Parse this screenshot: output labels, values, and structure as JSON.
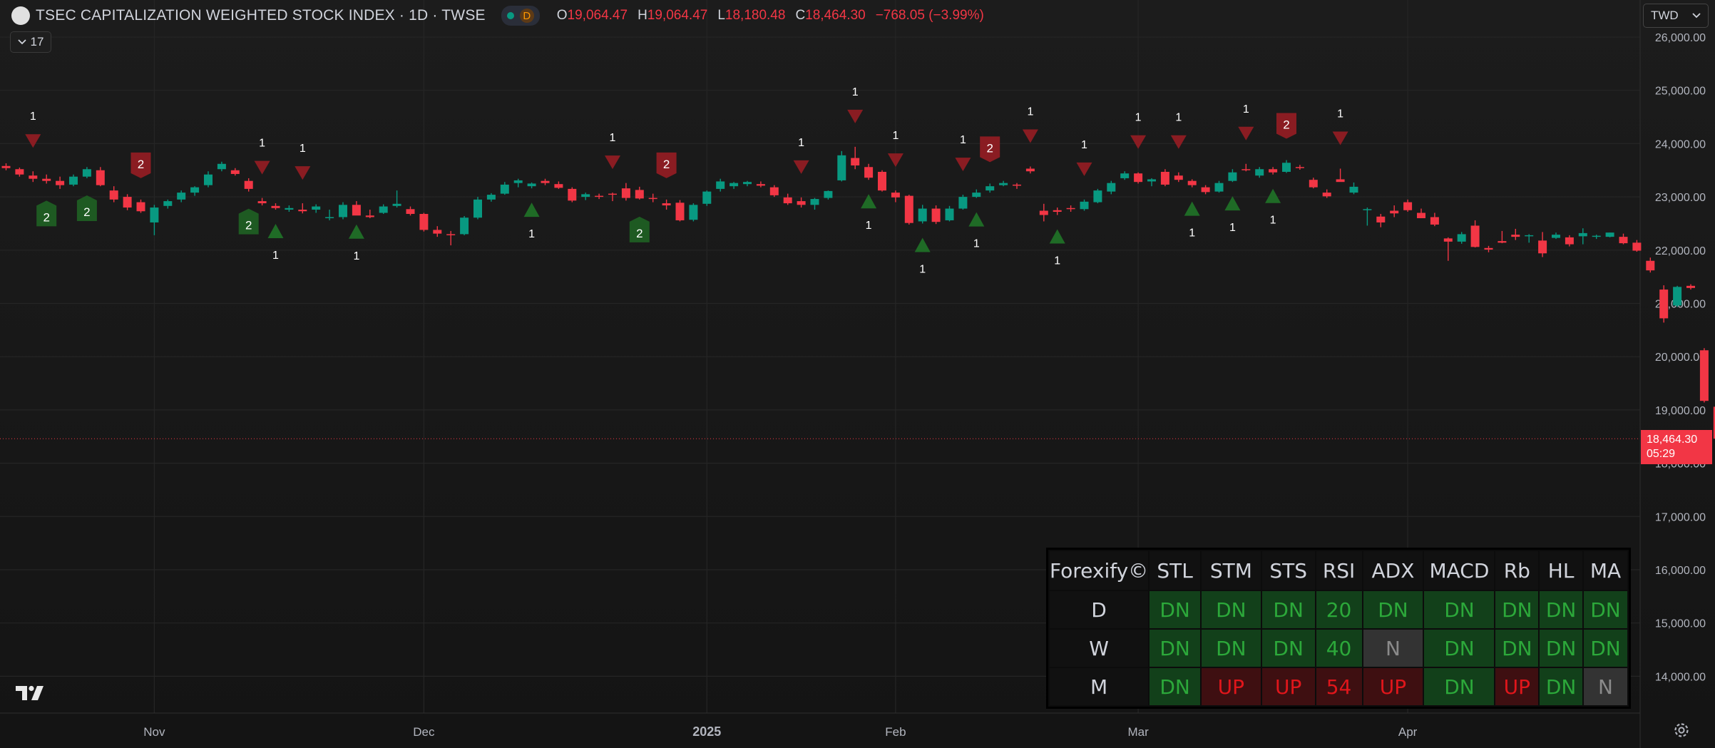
{
  "legend": {
    "title": "TSEC CAPITALIZATION WEIGHTED STOCK INDEX · 1D · TWSE",
    "interval_badge": "D",
    "o_key": "O",
    "o_val": "19,064.47",
    "h_key": "H",
    "h_val": "19,064.47",
    "l_key": "L",
    "l_val": "18,180.48",
    "c_key": "C",
    "c_val": "18,464.30",
    "change": "−768.05 (−3.99%)",
    "indicator_count": "17"
  },
  "currency": "TWD",
  "last_price": {
    "price": "18,464.30",
    "countdown": "05:29"
  },
  "colors": {
    "up": "#089981",
    "down": "#f23645",
    "dash_green": "#2ca83a",
    "dash_red": "#e0161b",
    "background": "#161616"
  },
  "icons": [
    "chevron-down-icon",
    "tradingview-logo-icon",
    "gear-icon"
  ],
  "chart_data": {
    "type": "candlestick",
    "symbol": "TSEC CAPITALIZATION WEIGHTED STOCK INDEX",
    "interval": "1D",
    "y_ticks": [
      "26,000.00",
      "25,000.00",
      "24,000.00",
      "23,000.00",
      "22,000.00",
      "21,000.00",
      "20,000.00",
      "19,000.00",
      "18,000.00",
      "17,000.00",
      "16,000.00",
      "15,000.00",
      "14,000.00"
    ],
    "ylim": [
      13650,
      26300
    ],
    "x_labels": [
      {
        "label": "Nov",
        "i": 11,
        "bold": false
      },
      {
        "label": "Dec",
        "i": 31,
        "bold": false
      },
      {
        "label": "2025",
        "i": 52,
        "bold": true
      },
      {
        "label": "Feb",
        "i": 66,
        "bold": false
      },
      {
        "label": "Mar",
        "i": 84,
        "bold": false
      },
      {
        "label": "Apr",
        "i": 104,
        "bold": false
      }
    ],
    "candles": [
      [
        23580,
        23630,
        23500,
        23540
      ],
      [
        23520,
        23550,
        23380,
        23420
      ],
      [
        23400,
        23480,
        23280,
        23340
      ],
      [
        23340,
        23420,
        23250,
        23300
      ],
      [
        23300,
        23380,
        23150,
        23220
      ],
      [
        23230,
        23420,
        23200,
        23380
      ],
      [
        23380,
        23560,
        23350,
        23520
      ],
      [
        23500,
        23560,
        23200,
        23220
      ],
      [
        23120,
        23200,
        22900,
        22950
      ],
      [
        23000,
        23050,
        22750,
        22800
      ],
      [
        22900,
        22950,
        22700,
        22730
      ],
      [
        22520,
        22850,
        22280,
        22800
      ],
      [
        22830,
        22950,
        22780,
        22920
      ],
      [
        22950,
        23120,
        22900,
        23080
      ],
      [
        23080,
        23200,
        23020,
        23180
      ],
      [
        23220,
        23480,
        23180,
        23420
      ],
      [
        23520,
        23660,
        23480,
        23620
      ],
      [
        23500,
        23540,
        23400,
        23430
      ],
      [
        23300,
        23350,
        23100,
        23150
      ],
      [
        22920,
        22980,
        22840,
        22880
      ],
      [
        22830,
        22880,
        22760,
        22790
      ],
      [
        22760,
        22840,
        22720,
        22790
      ],
      [
        22760,
        22880,
        22690,
        22730
      ],
      [
        22760,
        22860,
        22700,
        22820
      ],
      [
        22600,
        22760,
        22560,
        22620
      ],
      [
        22620,
        22900,
        22580,
        22850
      ],
      [
        22850,
        22920,
        22750,
        22650
      ],
      [
        22650,
        22760,
        22600,
        22620
      ],
      [
        22700,
        22860,
        22680,
        22820
      ],
      [
        22830,
        23120,
        22800,
        22870
      ],
      [
        22770,
        22820,
        22650,
        22680
      ],
      [
        22680,
        22700,
        22350,
        22380
      ],
      [
        22380,
        22450,
        22250,
        22310
      ],
      [
        22300,
        22360,
        22090,
        22280
      ],
      [
        22300,
        22640,
        22280,
        22610
      ],
      [
        22610,
        23000,
        22580,
        22950
      ],
      [
        22950,
        23070,
        22910,
        23040
      ],
      [
        23060,
        23280,
        23040,
        23230
      ],
      [
        23260,
        23340,
        23180,
        23310
      ],
      [
        23200,
        23270,
        23160,
        23250
      ],
      [
        23300,
        23340,
        23220,
        23260
      ],
      [
        23240,
        23290,
        23150,
        23170
      ],
      [
        23150,
        23180,
        22900,
        22930
      ],
      [
        23000,
        23080,
        22940,
        23050
      ],
      [
        23020,
        23060,
        22960,
        23000
      ],
      [
        23060,
        23080,
        22920,
        23040
      ],
      [
        23160,
        23260,
        22930,
        22980
      ],
      [
        23130,
        23190,
        22950,
        22970
      ],
      [
        22980,
        23060,
        22900,
        22960
      ],
      [
        22880,
        22950,
        22760,
        22840
      ],
      [
        22890,
        22940,
        22540,
        22560
      ],
      [
        22570,
        22880,
        22540,
        22850
      ],
      [
        22870,
        23120,
        22830,
        23100
      ],
      [
        23150,
        23340,
        23100,
        23290
      ],
      [
        23200,
        23280,
        23150,
        23260
      ],
      [
        23240,
        23300,
        23200,
        23280
      ],
      [
        23240,
        23290,
        23180,
        23210
      ],
      [
        23180,
        23220,
        23000,
        23030
      ],
      [
        22990,
        23060,
        22850,
        22880
      ],
      [
        22920,
        22990,
        22800,
        22850
      ],
      [
        22850,
        22980,
        22760,
        22960
      ],
      [
        22980,
        23120,
        22950,
        23110
      ],
      [
        23310,
        23860,
        23290,
        23780
      ],
      [
        23730,
        23940,
        23520,
        23590
      ],
      [
        23560,
        23620,
        23320,
        23360
      ],
      [
        23470,
        23500,
        23100,
        23120
      ],
      [
        23080,
        23120,
        22900,
        22990
      ],
      [
        23020,
        23040,
        22480,
        22510
      ],
      [
        22540,
        22850,
        22500,
        22780
      ],
      [
        22780,
        22840,
        22490,
        22530
      ],
      [
        22560,
        22830,
        22540,
        22780
      ],
      [
        22780,
        23040,
        22760,
        23000
      ],
      [
        23000,
        23140,
        22980,
        23080
      ],
      [
        23120,
        23250,
        23080,
        23200
      ],
      [
        23220,
        23300,
        23200,
        23260
      ],
      [
        23230,
        23260,
        23150,
        23220
      ],
      [
        23530,
        23570,
        23440,
        23480
      ],
      [
        22740,
        22870,
        22540,
        22660
      ],
      [
        22750,
        22800,
        22660,
        22720
      ],
      [
        22790,
        22840,
        22720,
        22780
      ],
      [
        22770,
        22950,
        22740,
        22910
      ],
      [
        22900,
        23150,
        22880,
        23120
      ],
      [
        23100,
        23300,
        23050,
        23260
      ],
      [
        23350,
        23480,
        23320,
        23440
      ],
      [
        23440,
        23460,
        23250,
        23280
      ],
      [
        23290,
        23350,
        23200,
        23330
      ],
      [
        23470,
        23520,
        23200,
        23230
      ],
      [
        23400,
        23460,
        23280,
        23320
      ],
      [
        23300,
        23330,
        23180,
        23220
      ],
      [
        23180,
        23220,
        23050,
        23090
      ],
      [
        23100,
        23300,
        23080,
        23260
      ],
      [
        23300,
        23520,
        23280,
        23460
      ],
      [
        23520,
        23620,
        23480,
        23500
      ],
      [
        23400,
        23560,
        23360,
        23520
      ],
      [
        23520,
        23560,
        23420,
        23460
      ],
      [
        23470,
        23690,
        23450,
        23640
      ],
      [
        23560,
        23600,
        23510,
        23540
      ],
      [
        23320,
        23360,
        23160,
        23180
      ],
      [
        23080,
        23140,
        22980,
        23010
      ],
      [
        23330,
        23530,
        23290,
        23280
      ],
      [
        23080,
        23270,
        23050,
        23190
      ],
      [
        22760,
        22800,
        22460,
        22770
      ],
      [
        22630,
        22680,
        22430,
        22520
      ],
      [
        22740,
        22840,
        22620,
        22690
      ],
      [
        22900,
        22950,
        22720,
        22750
      ],
      [
        22700,
        22780,
        22600,
        22600
      ],
      [
        22620,
        22700,
        22450,
        22480
      ],
      [
        22220,
        22240,
        21800,
        22160
      ],
      [
        22160,
        22340,
        22120,
        22300
      ],
      [
        22460,
        22560,
        22050,
        22060
      ],
      [
        22040,
        22080,
        21960,
        22010
      ],
      [
        22170,
        22360,
        22130,
        22140
      ],
      [
        22290,
        22400,
        22190,
        22250
      ],
      [
        22260,
        22300,
        22140,
        22280
      ],
      [
        22180,
        22340,
        21870,
        21940
      ],
      [
        22230,
        22330,
        22210,
        22290
      ],
      [
        22240,
        22280,
        22070,
        22110
      ],
      [
        22260,
        22410,
        22110,
        22320
      ],
      [
        22250,
        22290,
        22210,
        22270
      ],
      [
        22250,
        22330,
        22240,
        22330
      ],
      [
        22250,
        22310,
        22110,
        22130
      ],
      [
        22140,
        22190,
        21970,
        21990
      ],
      [
        21800,
        21860,
        21580,
        21620
      ],
      [
        21260,
        21340,
        20640,
        20720
      ],
      [
        20960,
        21330,
        20930,
        21310
      ],
      [
        21330,
        21360,
        21260,
        21290
      ],
      [
        20120,
        20160,
        19140,
        19170
      ],
      [
        19060,
        19060,
        18180,
        18460
      ]
    ],
    "signals": [
      {
        "i": 2,
        "kind": "dn",
        "label": "1"
      },
      {
        "i": 3,
        "kind": "up2",
        "label": "2"
      },
      {
        "i": 6,
        "kind": "up2",
        "label": "2"
      },
      {
        "i": 10,
        "kind": "dn2",
        "label": "2"
      },
      {
        "i": 18,
        "kind": "up2",
        "label": "2"
      },
      {
        "i": 19,
        "kind": "dn",
        "label": "1"
      },
      {
        "i": 20,
        "kind": "up",
        "label": "1"
      },
      {
        "i": 22,
        "kind": "dn",
        "label": "1"
      },
      {
        "i": 26,
        "kind": "up",
        "label": "1"
      },
      {
        "i": 39,
        "kind": "up",
        "label": "1"
      },
      {
        "i": 45,
        "kind": "dn",
        "label": "1"
      },
      {
        "i": 47,
        "kind": "up2",
        "label": "2"
      },
      {
        "i": 49,
        "kind": "dn2",
        "label": "2"
      },
      {
        "i": 59,
        "kind": "dn",
        "label": "1"
      },
      {
        "i": 63,
        "kind": "dn",
        "label": "1"
      },
      {
        "i": 64,
        "kind": "up",
        "label": "1"
      },
      {
        "i": 66,
        "kind": "dn",
        "label": "1"
      },
      {
        "i": 68,
        "kind": "up",
        "label": "1"
      },
      {
        "i": 71,
        "kind": "dn",
        "label": "1"
      },
      {
        "i": 72,
        "kind": "up",
        "label": "1"
      },
      {
        "i": 73,
        "kind": "dn2",
        "label": "2"
      },
      {
        "i": 76,
        "kind": "dn",
        "label": "1"
      },
      {
        "i": 78,
        "kind": "up",
        "label": "1"
      },
      {
        "i": 80,
        "kind": "dn",
        "label": "1"
      },
      {
        "i": 84,
        "kind": "dn",
        "label": "1"
      },
      {
        "i": 87,
        "kind": "dn",
        "label": "1"
      },
      {
        "i": 88,
        "kind": "up",
        "label": "1"
      },
      {
        "i": 91,
        "kind": "up",
        "label": "1"
      },
      {
        "i": 92,
        "kind": "dn",
        "label": "1"
      },
      {
        "i": 94,
        "kind": "up",
        "label": "1"
      },
      {
        "i": 95,
        "kind": "dn2",
        "label": "2"
      },
      {
        "i": 99,
        "kind": "dn",
        "label": "1"
      }
    ],
    "grid": true
  },
  "dashboard": {
    "brand": "Forexify©",
    "columns": [
      "STL",
      "STM",
      "STS",
      "RSI",
      "ADX",
      "MACD",
      "Rb",
      "HL",
      "MA"
    ],
    "rows": [
      {
        "tf": "D",
        "cells": [
          {
            "t": "DN",
            "c": "g"
          },
          {
            "t": "DN",
            "c": "g"
          },
          {
            "t": "DN",
            "c": "g"
          },
          {
            "t": "20",
            "c": "g"
          },
          {
            "t": "DN",
            "c": "g"
          },
          {
            "t": "DN",
            "c": "g"
          },
          {
            "t": "DN",
            "c": "g"
          },
          {
            "t": "DN",
            "c": "g"
          },
          {
            "t": "DN",
            "c": "g"
          }
        ]
      },
      {
        "tf": "W",
        "cells": [
          {
            "t": "DN",
            "c": "g"
          },
          {
            "t": "DN",
            "c": "g"
          },
          {
            "t": "DN",
            "c": "g"
          },
          {
            "t": "40",
            "c": "g"
          },
          {
            "t": "N",
            "c": "n"
          },
          {
            "t": "DN",
            "c": "g"
          },
          {
            "t": "DN",
            "c": "g"
          },
          {
            "t": "DN",
            "c": "g"
          },
          {
            "t": "DN",
            "c": "g"
          }
        ]
      },
      {
        "tf": "M",
        "cells": [
          {
            "t": "DN",
            "c": "g"
          },
          {
            "t": "UP",
            "c": "r"
          },
          {
            "t": "UP",
            "c": "r"
          },
          {
            "t": "54",
            "c": "r"
          },
          {
            "t": "UP",
            "c": "r"
          },
          {
            "t": "DN",
            "c": "g"
          },
          {
            "t": "UP",
            "c": "r"
          },
          {
            "t": "DN",
            "c": "g"
          },
          {
            "t": "N",
            "c": "n"
          }
        ]
      }
    ]
  }
}
